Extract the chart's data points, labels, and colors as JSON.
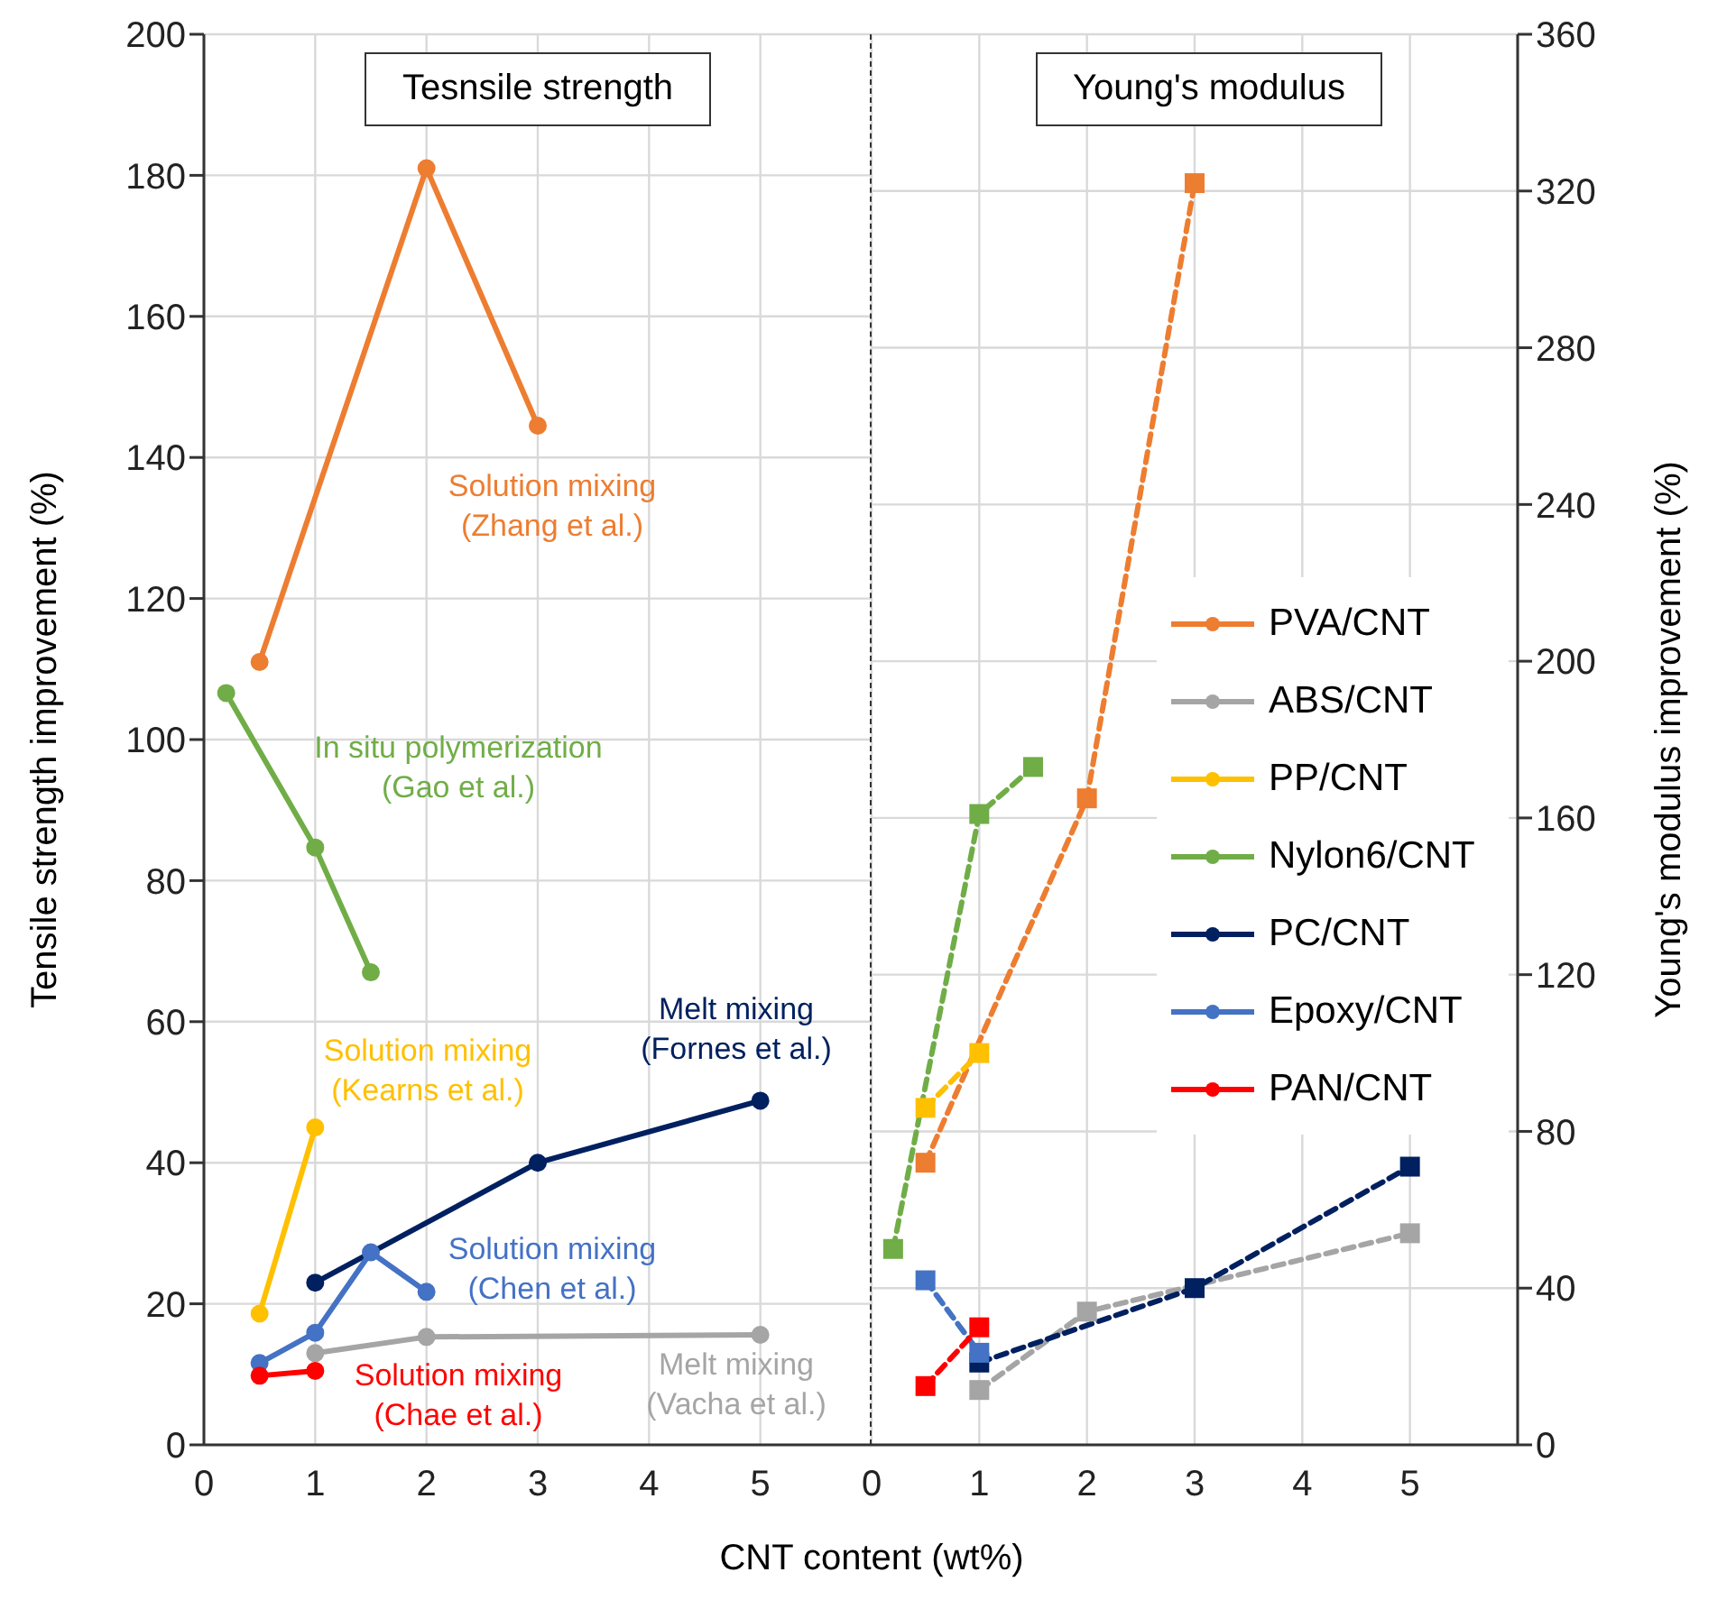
{
  "chart_data": [
    {
      "type": "line",
      "title": "Tesnsile strength",
      "xlabel": "CNT content (wt%)",
      "ylabel": "Tensile strength improvement (%)",
      "xlim": [
        0,
        6
      ],
      "xticks": [
        0,
        1,
        2,
        3,
        4,
        5
      ],
      "ylim": [
        0,
        200
      ],
      "yticks": [
        0,
        20,
        40,
        60,
        80,
        100,
        120,
        140,
        160,
        180,
        200
      ],
      "grid": true,
      "marker": "circle",
      "line_style": "solid",
      "series": [
        {
          "color": "#ed7d31",
          "x": [
            0.5,
            2,
            3
          ],
          "values": [
            111,
            181,
            144.5
          ]
        },
        {
          "color": "#a5a5a5",
          "x": [
            1,
            2,
            5
          ],
          "values": [
            13,
            15.3,
            15.6
          ]
        },
        {
          "color": "#ffc000",
          "x": [
            0.5,
            1
          ],
          "values": [
            18.6,
            45
          ]
        },
        {
          "color": "#70ad47",
          "x": [
            0.2,
            1,
            1.5
          ],
          "values": [
            106.6,
            84.7,
            67
          ]
        },
        {
          "color": "#002060",
          "x": [
            1,
            3,
            5
          ],
          "values": [
            23,
            40,
            48.8
          ]
        },
        {
          "color": "#4472c4",
          "x": [
            0.5,
            1,
            1.5,
            2
          ],
          "values": [
            11.6,
            15.9,
            27.3,
            21.7
          ]
        },
        {
          "color": "#ff0000",
          "x": [
            0.5,
            1
          ],
          "values": [
            9.8,
            10.5
          ]
        }
      ],
      "annotations": [
        "Solution mixing\n(Zhang et al.)",
        "Melt mixing\n(Vacha et al.)",
        "Solution mixing\n(Kearns et al.)",
        "In situ polymerization\n(Gao et al.)",
        "Melt mixing\n(Fornes et al.)",
        "Solution mixing\n(Chen et al.)",
        "Solution mixing\n(Chae et al.)"
      ]
    },
    {
      "type": "line",
      "title": "Young's modulus",
      "y2label": "Young's modulus improvement (%)",
      "xlim": [
        0,
        6
      ],
      "xticks": [
        0,
        1,
        2,
        3,
        4,
        5
      ],
      "y2lim": [
        0,
        360
      ],
      "y2ticks": [
        0,
        40,
        80,
        120,
        160,
        200,
        240,
        280,
        320,
        360
      ],
      "grid": true,
      "marker": "square",
      "line_style": "dashed",
      "legend": "right",
      "series": [
        {
          "name": "PVA/CNT",
          "color": "#ed7d31",
          "axis": "y2",
          "x": [
            0.5,
            2,
            3
          ],
          "values": [
            72,
            165,
            322
          ]
        },
        {
          "name": "ABS/CNT",
          "color": "#a5a5a5",
          "axis": "y2",
          "x": [
            1,
            2,
            5
          ],
          "values": [
            14,
            34,
            54
          ]
        },
        {
          "name": "PP/CNT",
          "color": "#ffc000",
          "axis": "y2",
          "x": [
            0.5,
            1
          ],
          "values": [
            86,
            100
          ]
        },
        {
          "name": "Nylon6/CNT",
          "color": "#70ad47",
          "axis": "y2",
          "x": [
            0.2,
            1,
            1.5
          ],
          "values": [
            50,
            161,
            173
          ]
        },
        {
          "name": "PC/CNT",
          "color": "#002060",
          "axis": "y2",
          "x": [
            1,
            3,
            5
          ],
          "values": [
            21,
            40,
            71
          ]
        },
        {
          "name": "Epoxy/CNT",
          "color": "#4472c4",
          "axis": "y2",
          "x": [
            0.5,
            1
          ],
          "values": [
            42,
            23.5
          ]
        },
        {
          "name": "PAN/CNT",
          "color": "#ff0000",
          "axis": "y2",
          "x": [
            0.5,
            1
          ],
          "values": [
            15,
            30
          ]
        }
      ]
    }
  ]
}
